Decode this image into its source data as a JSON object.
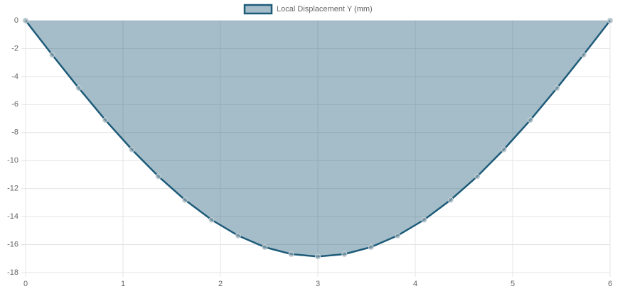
{
  "chart_data": {
    "type": "area",
    "x": [
      0,
      0.2727,
      0.5455,
      0.8182,
      1.0909,
      1.3636,
      1.6364,
      1.9091,
      2.1818,
      2.4545,
      2.7273,
      3,
      3.2727,
      3.5455,
      3.8182,
      4.0909,
      4.3636,
      4.6364,
      4.9091,
      5.1818,
      5.4545,
      5.7273,
      6
    ],
    "series": [
      {
        "name": "Local Displacement Y (mm)",
        "color": "#1d5b79",
        "values": [
          0,
          -2.44,
          -4.82,
          -7.1,
          -9.21,
          -11.13,
          -12.81,
          -14.23,
          -15.36,
          -16.18,
          -16.68,
          -16.85,
          -16.68,
          -16.18,
          -15.36,
          -14.23,
          -12.81,
          -11.13,
          -9.21,
          -7.1,
          -4.82,
          -2.44,
          0
        ]
      }
    ],
    "xlim": [
      0,
      6
    ],
    "xticks": [
      0,
      1,
      2,
      3,
      4,
      5,
      6
    ],
    "ylim": [
      -18,
      0
    ],
    "yticks": [
      0,
      -2,
      -4,
      -6,
      -8,
      -10,
      -12,
      -14,
      -16,
      -18
    ],
    "grid": true,
    "legend": "top"
  }
}
